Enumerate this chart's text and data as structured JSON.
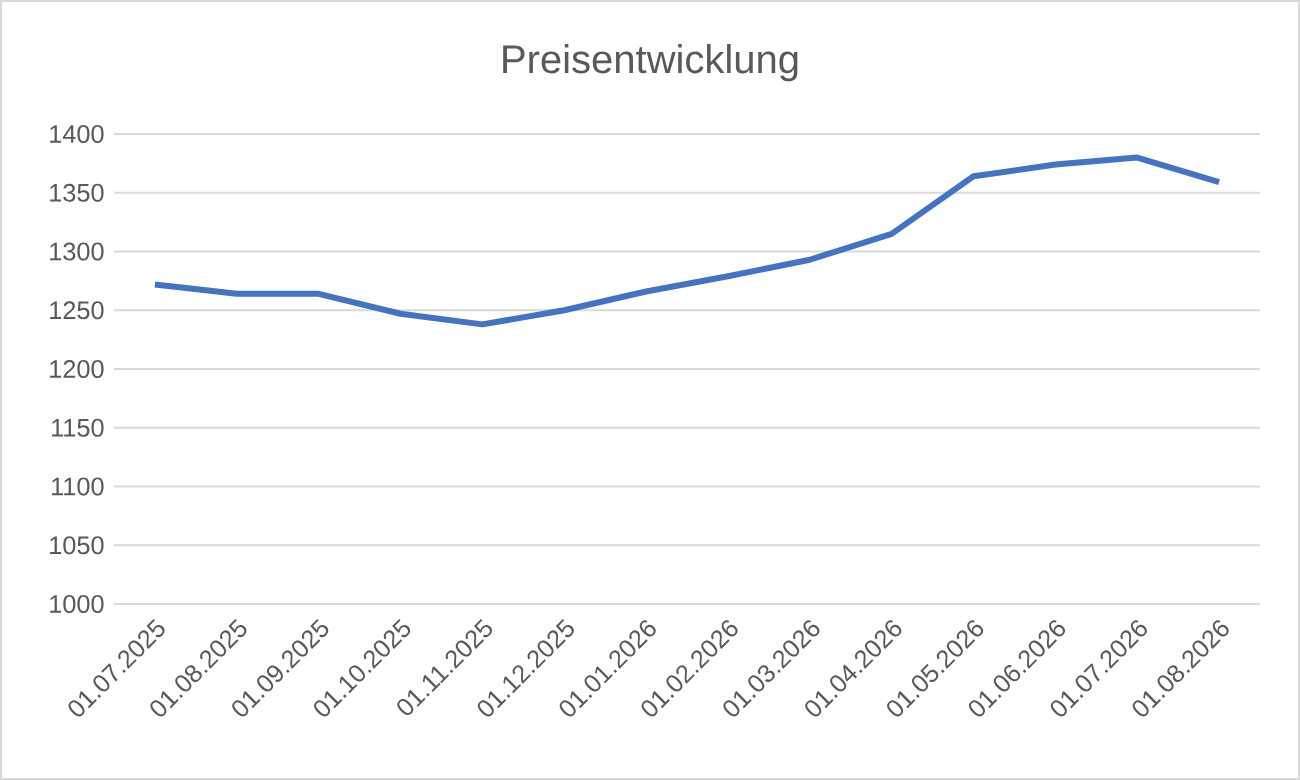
{
  "chart_data": {
    "type": "line",
    "title": "Preisentwicklung",
    "categories": [
      "01.07.2025",
      "01.08.2025",
      "01.09.2025",
      "01.10.2025",
      "01.11.2025",
      "01.12.2025",
      "01.01.2026",
      "01.02.2026",
      "01.03.2026",
      "01.04.2026",
      "01.05.2026",
      "01.06.2026",
      "01.07.2026",
      "01.08.2026"
    ],
    "series": [
      {
        "color": "#4472c4",
        "values": [
          1272,
          1264,
          1264,
          1247,
          1238,
          1250,
          1266,
          1279,
          1293,
          1315,
          1364,
          1374,
          1380,
          1359
        ]
      }
    ],
    "ylim": [
      1000,
      1400
    ],
    "yticks": [
      1000,
      1050,
      1100,
      1150,
      1200,
      1250,
      1300,
      1350,
      1400
    ],
    "grid": "y",
    "marker": "none",
    "line_style": "solid"
  }
}
